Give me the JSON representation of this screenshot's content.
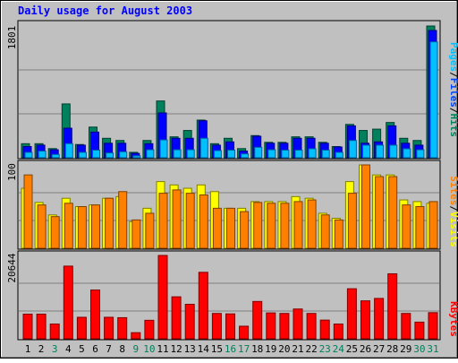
{
  "chart_data": [
    {
      "type": "bar",
      "title": "Daily usage for August 2003",
      "panel": "pages-files-hits",
      "y_max_label": "1801",
      "ylim": [
        0,
        1801
      ],
      "side_labels": [
        "Pages",
        "/",
        "Files",
        "/",
        "Hits"
      ],
      "categories": [
        "1",
        "2",
        "3",
        "4",
        "5",
        "6",
        "7",
        "8",
        "9",
        "10",
        "11",
        "12",
        "13",
        "14",
        "15",
        "16",
        "17",
        "18",
        "19",
        "20",
        "21",
        "22",
        "23",
        "24",
        "25",
        "26",
        "27",
        "28",
        "29",
        "30",
        "31"
      ],
      "weekend_days": [
        "3",
        "9",
        "10",
        "16",
        "17",
        "23",
        "24",
        "30",
        "31"
      ],
      "series": [
        {
          "name": "Hits",
          "values": [
            192,
            192,
            125,
            736,
            181,
            419,
            266,
            236,
            74,
            236,
            776,
            286,
            373,
            515,
            192,
            266,
            125,
            303,
            211,
            211,
            286,
            286,
            211,
            153,
            456,
            373,
            391,
            482,
            266,
            236,
            1801
          ]
        },
        {
          "name": "Files",
          "values": [
            153,
            172,
            109,
            404,
            172,
            351,
            198,
            198,
            59,
            192,
            613,
            266,
            266,
            505,
            172,
            217,
            91,
            294,
            198,
            198,
            266,
            266,
            198,
            147,
            436,
            198,
            217,
            436,
            198,
            172,
            1740
          ]
        },
        {
          "name": "Pages",
          "values": [
            74,
            91,
            45,
            193,
            74,
            104,
            66,
            82,
            26,
            109,
            244,
            109,
            109,
            266,
            98,
            104,
            53,
            143,
            109,
            104,
            104,
            123,
            104,
            74,
            236,
            172,
            172,
            172,
            123,
            109,
            1584
          ]
        }
      ]
    },
    {
      "type": "bar",
      "panel": "visits-sites",
      "y_max_label": "100",
      "ylim": [
        0,
        100
      ],
      "side_labels": [
        "Sites",
        "/",
        "Visits"
      ],
      "series": [
        {
          "name": "Visits",
          "values": [
            72,
            55,
            40,
            60,
            50,
            52,
            60,
            62,
            32,
            48,
            80,
            76,
            72,
            76,
            68,
            48,
            48,
            56,
            56,
            56,
            62,
            60,
            42,
            36,
            80,
            100,
            88,
            88,
            58,
            56,
            54
          ]
        },
        {
          "name": "Sites",
          "values": [
            88,
            52,
            38,
            54,
            50,
            52,
            60,
            68,
            34,
            42,
            66,
            70,
            66,
            64,
            48,
            48,
            44,
            55,
            54,
            54,
            56,
            58,
            40,
            34,
            66,
            100,
            86,
            86,
            52,
            50,
            56
          ]
        }
      ]
    },
    {
      "type": "bar",
      "panel": "kbytes",
      "y_max_label": "20644",
      "ylim": [
        0,
        20644
      ],
      "side_labels": [
        "KBytes"
      ],
      "series": [
        {
          "name": "KBytes",
          "values": [
            6110,
            6110,
            3660,
            18000,
            5330,
            12080,
            5330,
            5230,
            1520,
            4580,
            20644,
            10400,
            8550,
            16470,
            6280,
            6170,
            3120,
            9250,
            6410,
            6280,
            7380,
            6280,
            4630,
            3660,
            12400,
            9400,
            10000,
            16100,
            6280,
            4130,
            6480
          ]
        }
      ]
    }
  ]
}
